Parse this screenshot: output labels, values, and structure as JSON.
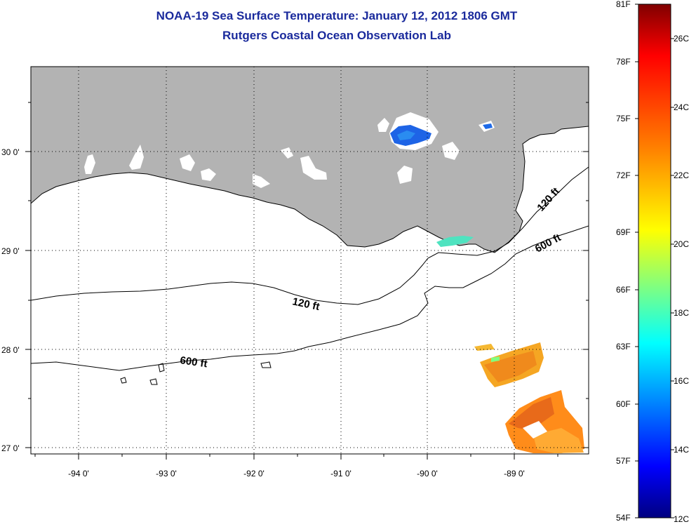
{
  "header": {
    "title": "NOAA-19 Sea Surface Temperature:  January 12, 2012 1806 GMT",
    "subtitle": "Rutgers Coastal Ocean Observation Lab"
  },
  "map": {
    "lon_range": [
      -94.55,
      -88.25
    ],
    "lat_range": [
      26.95,
      30.85
    ],
    "lon_ticks": [
      "-94 0'",
      "-93 0'",
      "-92 0'",
      "-91 0'",
      "-90 0'",
      "-89 0'"
    ],
    "lat_ticks": [
      "30 0'",
      "29 0'",
      "28 0'",
      "27 0'"
    ],
    "grid": "dotted",
    "land_color": "#b3b3b3",
    "contours": [
      {
        "label": "120 ft",
        "label_position": [
          -91.3,
          28.5
        ]
      },
      {
        "label": "600 ft",
        "label_position": [
          -92.65,
          27.88
        ]
      },
      {
        "label": "120 ft",
        "label_position": [
          -88.7,
          29.55
        ]
      },
      {
        "label": "600 ft",
        "label_position": [
          -88.75,
          29.05
        ]
      }
    ]
  },
  "colorbar": {
    "fahrenheit_labels": [
      "81F",
      "78F",
      "75F",
      "72F",
      "69F",
      "66F",
      "63F",
      "60F",
      "57F",
      "54F"
    ],
    "celsius_labels": [
      "26C",
      "24C",
      "22C",
      "20C",
      "18C",
      "16C",
      "14C",
      "12C"
    ],
    "colors": [
      "#800000",
      "#ff0000",
      "#ff8000",
      "#ffff00",
      "#80ff80",
      "#00ffff",
      "#0080ff",
      "#0000ff",
      "#000080"
    ]
  }
}
